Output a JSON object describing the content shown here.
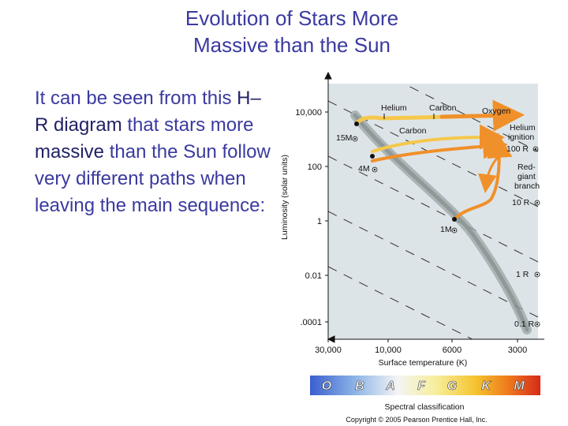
{
  "slide": {
    "title_line1": "Evolution of Stars More",
    "title_line2": "Massive than the Sun",
    "body": {
      "part1": "It can be seen from this ",
      "hr_term": "H–R diagram",
      "part2": " that stars more ",
      "massive_term": "massive",
      "part3": " than the Sun follow very different paths when leaving the main sequence:"
    }
  },
  "diagram": {
    "y_axis_label": "Luminosity (solar units)",
    "x_axis_label": "Surface temperature (K)",
    "y_ticks": [
      "10,000",
      "100",
      "1",
      "0.01",
      ".0001"
    ],
    "x_ticks": [
      "30,000",
      "10,000",
      "6000",
      "3000"
    ],
    "radius_labels": [
      "100 R",
      "10 R",
      "1 R",
      "0.1 R"
    ],
    "star_masses": [
      "15M",
      "4M",
      "1M"
    ],
    "stage_labels": {
      "helium": "Helium",
      "carbon_top": "Carbon",
      "oxygen": "Oxygen",
      "carbon_mid": "Carbon",
      "helium_ignition_1": "Helium",
      "helium_ignition_2": "ignition",
      "red_giant_1": "Red-",
      "red_giant_2": "giant",
      "red_giant_3": "branch"
    },
    "spectral_classes": [
      "O",
      "B",
      "A",
      "F",
      "G",
      "K",
      "M"
    ],
    "spectral_label": "Spectral classification",
    "copyright": "Copyright © 2005 Pearson Prentice Hall, Inc.",
    "colors": {
      "title_text": "#3a3aa0",
      "panel": "#dde4e8",
      "track_orange": "#f0902a",
      "track_yellow": "#f5c84a"
    }
  }
}
